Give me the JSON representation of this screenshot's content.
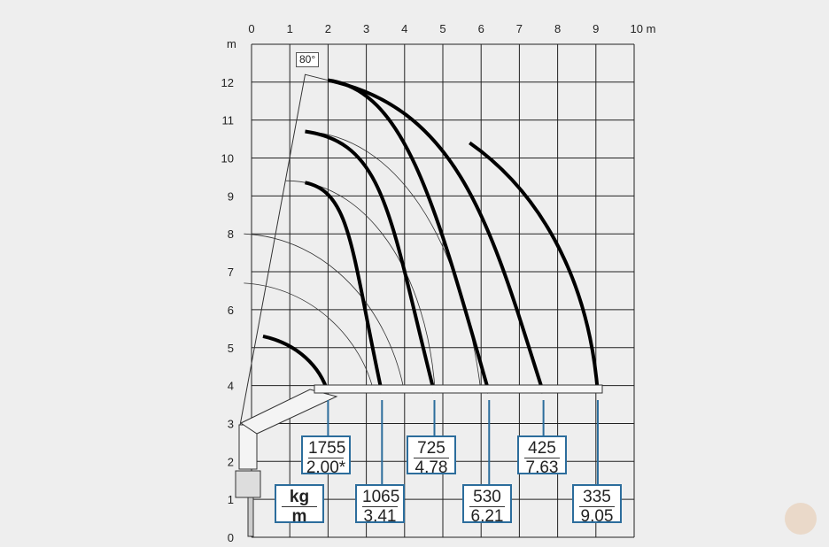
{
  "diagram": {
    "x_ticks": [
      "0",
      "1",
      "2",
      "3",
      "4",
      "5",
      "6",
      "7",
      "8",
      "9",
      "10 m"
    ],
    "y_ticks": [
      "0",
      "1",
      "2",
      "3",
      "4",
      "5",
      "6",
      "7",
      "8",
      "9",
      "10",
      "11",
      "12"
    ],
    "y_unit": "m",
    "angle_label": "80°",
    "units_box": {
      "top": "kg",
      "bottom": "m"
    },
    "loads": [
      {
        "kg": "1755",
        "m": "2.00*",
        "reach": 2.0
      },
      {
        "kg": "1065",
        "m": "3.41",
        "reach": 3.41
      },
      {
        "kg": "725",
        "m": "4.78",
        "reach": 4.78
      },
      {
        "kg": "530",
        "m": "6.21",
        "reach": 6.21
      },
      {
        "kg": "425",
        "m": "7.63",
        "reach": 7.63
      },
      {
        "kg": "335",
        "m": "9.05",
        "reach": 9.05
      }
    ],
    "colors": {
      "background": "#eeeeee",
      "grid": "#222222",
      "callout": "#2c6d9c",
      "curve": "#000000"
    }
  }
}
